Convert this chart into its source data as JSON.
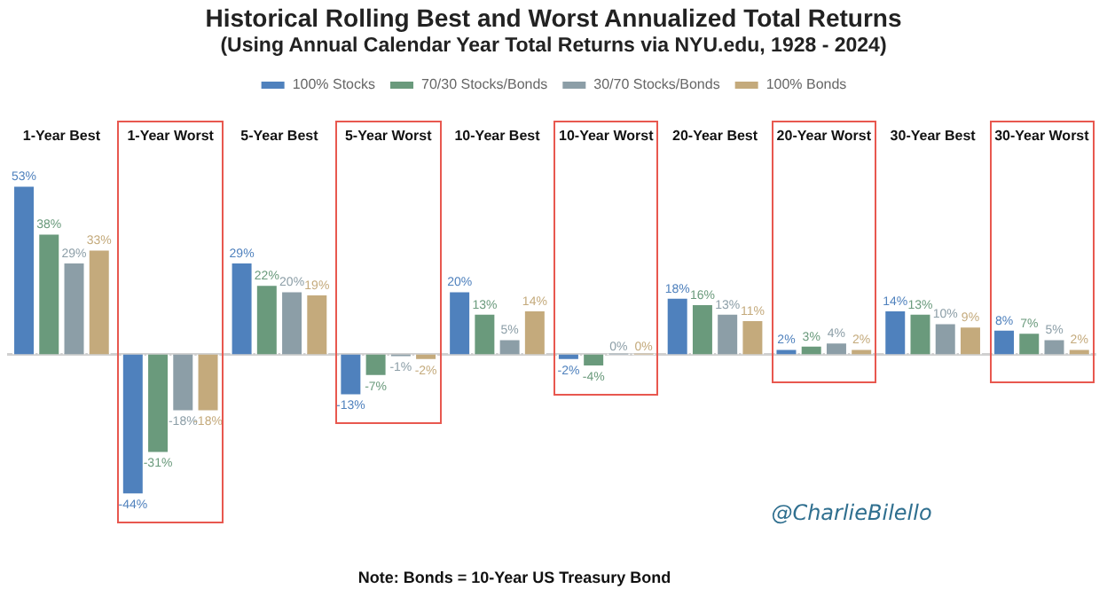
{
  "chart_data": {
    "type": "bar",
    "title": "Historical Rolling Best and Worst Annualized Total Returns",
    "subtitle": "(Using Annual Calendar Year Total Returns via NYU.edu, 1928 - 2024)",
    "categories": [
      "1-Year Best",
      "1-Year Worst",
      "5-Year Best",
      "5-Year Worst",
      "10-Year Best",
      "10-Year Worst",
      "20-Year Best",
      "20-Year Worst",
      "30-Year Best",
      "30-Year Worst"
    ],
    "series": [
      {
        "name": "100% Stocks",
        "color": "#4f81bd",
        "values": [
          53,
          -44,
          29,
          -13,
          20,
          -2,
          18,
          2,
          14,
          8
        ],
        "value_labels": [
          "53%",
          "-44%",
          "29%",
          "-13%",
          "20%",
          "-2%",
          "18%",
          "2%",
          "14%",
          "8%"
        ]
      },
      {
        "name": "70/30 Stocks/Bonds",
        "color": "#6a9a7c",
        "values": [
          38,
          -31,
          22,
          -7,
          13,
          -4,
          16,
          3,
          13,
          7
        ],
        "value_labels": [
          "38%",
          "-31%",
          "22%",
          "-7%",
          "13%",
          "-4%",
          "16%",
          "3%",
          "13%",
          "7%"
        ]
      },
      {
        "name": "30/70 Stocks/Bonds",
        "color": "#8c9ea7",
        "values": [
          29,
          -18,
          20,
          -1,
          5,
          0,
          13,
          4,
          10,
          5
        ],
        "value_labels": [
          "29%",
          "-18%",
          "20%",
          "-1%",
          "5%",
          "0%",
          "13%",
          "4%",
          "10%",
          "5%"
        ]
      },
      {
        "name": "100% Bonds",
        "color": "#c4aa7c",
        "values": [
          33,
          -18,
          19,
          -2,
          14,
          0,
          11,
          2,
          9,
          2
        ],
        "value_labels": [
          "33%",
          "-18%",
          "19%",
          "-2%",
          "14%",
          "0%",
          "11%",
          "2%",
          "9%",
          "2%"
        ]
      }
    ],
    "tick_labels": "x",
    "legend": "top",
    "annotations": [
      "@CharlieBilello",
      "Note: Bonds = 10-Year US Treasury Bond"
    ]
  }
}
